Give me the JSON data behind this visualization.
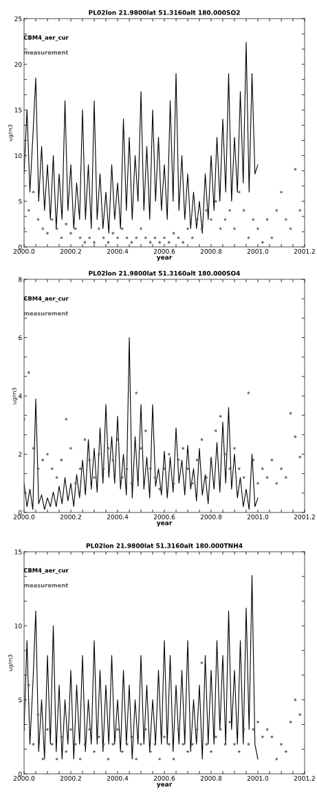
{
  "chart_data": [
    {
      "type": "line",
      "title": "PL02lon 21.9800lat 51.3160alt 180.000SO2",
      "xlabel": "year",
      "ylabel": "ug/m3",
      "legend": "top left",
      "xlim": [
        2000.0,
        2001.2
      ],
      "ylim": [
        0,
        25
      ],
      "xticks": [
        {
          "value": 2000.0,
          "label": "2000.0"
        },
        {
          "value": 2000.05,
          "label": null
        },
        {
          "value": 2000.1,
          "label": null
        },
        {
          "value": 2000.15,
          "label": null
        },
        {
          "value": 2000.2,
          "label": "2000.2"
        },
        {
          "value": 2000.25,
          "label": null
        },
        {
          "value": 2000.3,
          "label": null
        },
        {
          "value": 2000.35,
          "label": null
        },
        {
          "value": 2000.4,
          "label": "2000.4"
        },
        {
          "value": 2000.45,
          "label": null
        },
        {
          "value": 2000.5,
          "label": null
        },
        {
          "value": 2000.55,
          "label": null
        },
        {
          "value": 2000.6,
          "label": "2000.6"
        },
        {
          "value": 2000.65,
          "label": null
        },
        {
          "value": 2000.7,
          "label": null
        },
        {
          "value": 2000.75,
          "label": null
        },
        {
          "value": 2000.8,
          "label": "2000.8"
        },
        {
          "value": 2000.85,
          "label": null
        },
        {
          "value": 2000.9,
          "label": null
        },
        {
          "value": 2000.95,
          "label": null
        },
        {
          "value": 2001.0,
          "label": "2001.0"
        },
        {
          "value": 2001.05,
          "label": null
        },
        {
          "value": 2001.1,
          "label": null
        },
        {
          "value": 2001.15,
          "label": null
        },
        {
          "value": 2001.2,
          "label": "2001.2"
        }
      ],
      "yticks": [
        0,
        {
          "value": 1.667,
          "label": null
        },
        {
          "value": 3.333,
          "label": null
        },
        5,
        {
          "value": 6.667,
          "label": null
        },
        {
          "value": 8.333,
          "label": null
        },
        10,
        {
          "value": 11.667,
          "label": null
        },
        {
          "value": 13.333,
          "label": null
        },
        15,
        {
          "value": 16.667,
          "label": null
        },
        {
          "value": 18.333,
          "label": null
        },
        20,
        {
          "value": 21.667,
          "label": null
        },
        {
          "value": 23.333,
          "label": null
        },
        25
      ],
      "series": [
        {
          "name": "CBM4_aer_cur",
          "type": "line",
          "color": "#000000",
          "marker": "none",
          "line_style": "solid",
          "x": [
            2000,
            2000.0125,
            2000.025,
            2000.0375,
            2000.05,
            2000.0625,
            2000.075,
            2000.0875,
            2000.1,
            2000.1125,
            2000.125,
            2000.1375,
            2000.15,
            2000.1625,
            2000.175,
            2000.1875,
            2000.2,
            2000.2125,
            2000.225,
            2000.2375,
            2000.25,
            2000.2625,
            2000.275,
            2000.2875,
            2000.3,
            2000.3125,
            2000.325,
            2000.3375,
            2000.35,
            2000.3625,
            2000.375,
            2000.3875,
            2000.4,
            2000.4125,
            2000.425,
            2000.4375,
            2000.45,
            2000.4625,
            2000.475,
            2000.4875,
            2000.5,
            2000.5125,
            2000.525,
            2000.5375,
            2000.55,
            2000.5625,
            2000.575,
            2000.5875,
            2000.6,
            2000.6125,
            2000.625,
            2000.6375,
            2000.65,
            2000.6625,
            2000.675,
            2000.6875,
            2000.7,
            2000.7125,
            2000.725,
            2000.7375,
            2000.75,
            2000.7625,
            2000.775,
            2000.7875,
            2000.8,
            2000.8125,
            2000.825,
            2000.8375,
            2000.85,
            2000.8625,
            2000.875,
            2000.8875,
            2000.9,
            2000.9125,
            2000.925,
            2000.9375,
            2000.95,
            2000.9625,
            2000.975,
            2000.9875,
            2001
          ],
          "values": [
            8,
            15,
            6,
            12,
            18.5,
            5,
            11,
            4,
            9,
            3,
            10,
            2,
            8,
            3,
            16,
            4,
            9,
            2,
            7,
            3,
            15,
            3,
            9,
            2,
            16,
            3,
            8,
            2,
            6,
            1.5,
            9,
            3,
            7,
            2,
            14,
            4,
            12,
            3,
            10,
            5,
            17,
            4,
            11,
            3,
            15,
            5,
            12,
            4,
            9,
            3,
            16,
            5,
            19,
            4,
            10,
            3,
            8,
            2,
            6,
            2,
            5,
            1.5,
            8,
            3,
            10,
            4,
            12,
            5,
            14,
            6,
            19,
            5,
            12,
            6,
            17,
            7,
            22.4,
            6,
            19,
            8,
            9
          ]
        },
        {
          "name": "measurement",
          "type": "scatter",
          "color": "#555555",
          "marker": "star",
          "x": [
            2000,
            2000.02,
            2000.04,
            2000.06,
            2000.08,
            2000.1,
            2000.12,
            2000.14,
            2000.16,
            2000.18,
            2000.2,
            2000.22,
            2000.24,
            2000.26,
            2000.28,
            2000.3,
            2000.32,
            2000.34,
            2000.36,
            2000.38,
            2000.4,
            2000.42,
            2000.44,
            2000.46,
            2000.48,
            2000.5,
            2000.52,
            2000.54,
            2000.56,
            2000.58,
            2000.6,
            2000.62,
            2000.64,
            2000.66,
            2000.68,
            2000.7,
            2000.72,
            2000.74,
            2000.76,
            2000.78,
            2000.8,
            2000.82,
            2000.84,
            2000.86,
            2000.88,
            2000.9,
            2000.92,
            2000.94,
            2000.96,
            2000.98,
            2001,
            2001.02,
            2001.04,
            2001.06,
            2001.08,
            2001.1,
            2001.12,
            2001.14,
            2001.16,
            2001.18
          ],
          "values": [
            2,
            4,
            6,
            3,
            2,
            1.5,
            3,
            2,
            1,
            2.5,
            1.5,
            2,
            1,
            0.5,
            1,
            0.5,
            2,
            1,
            0.5,
            1.5,
            1,
            2,
            1,
            0.5,
            1,
            2,
            1,
            0.5,
            1,
            0.5,
            1,
            0.5,
            1.5,
            1,
            0.5,
            2,
            1,
            3,
            2,
            4,
            3,
            5,
            2,
            3,
            4,
            2,
            6,
            4,
            1,
            3,
            2,
            0.5,
            3,
            1,
            4,
            6,
            3,
            2,
            8.5,
            4
          ]
        }
      ]
    },
    {
      "type": "line",
      "title": "PL02lon 21.9800lat 51.3160alt 180.000SO4",
      "xlabel": "year",
      "ylabel": "ug/m3",
      "legend": "top left",
      "xlim": [
        2000.0,
        2001.2
      ],
      "ylim": [
        0,
        8
      ],
      "xticks": [
        {
          "value": 2000.0,
          "label": "2000.0"
        },
        {
          "value": 2000.05,
          "label": null
        },
        {
          "value": 2000.1,
          "label": null
        },
        {
          "value": 2000.15,
          "label": null
        },
        {
          "value": 2000.2,
          "label": "2000.2"
        },
        {
          "value": 2000.25,
          "label": null
        },
        {
          "value": 2000.3,
          "label": null
        },
        {
          "value": 2000.35,
          "label": null
        },
        {
          "value": 2000.4,
          "label": "2000.4"
        },
        {
          "value": 2000.45,
          "label": null
        },
        {
          "value": 2000.5,
          "label": null
        },
        {
          "value": 2000.55,
          "label": null
        },
        {
          "value": 2000.6,
          "label": "2000.6"
        },
        {
          "value": 2000.65,
          "label": null
        },
        {
          "value": 2000.7,
          "label": null
        },
        {
          "value": 2000.75,
          "label": null
        },
        {
          "value": 2000.8,
          "label": "2000.8"
        },
        {
          "value": 2000.85,
          "label": null
        },
        {
          "value": 2000.9,
          "label": null
        },
        {
          "value": 2000.95,
          "label": null
        },
        {
          "value": 2001.0,
          "label": "2001.0"
        },
        {
          "value": 2001.05,
          "label": null
        },
        {
          "value": 2001.1,
          "label": null
        },
        {
          "value": 2001.15,
          "label": null
        },
        {
          "value": 2001.2,
          "label": "2001.2"
        }
      ],
      "yticks": [
        0,
        {
          "value": 0.667,
          "label": null
        },
        {
          "value": 1.333,
          "label": null
        },
        2,
        {
          "value": 2.667,
          "label": null
        },
        {
          "value": 3.333,
          "label": null
        },
        4,
        {
          "value": 4.667,
          "label": null
        },
        {
          "value": 5.333,
          "label": null
        },
        6,
        {
          "value": 6.667,
          "label": null
        },
        {
          "value": 7.333,
          "label": null
        },
        8
      ],
      "series": [
        {
          "name": "CBM4_aer_cur",
          "type": "line",
          "color": "#000000",
          "marker": "none",
          "line_style": "solid",
          "x": [
            2000,
            2000.0125,
            2000.025,
            2000.0375,
            2000.05,
            2000.0625,
            2000.075,
            2000.0875,
            2000.1,
            2000.1125,
            2000.125,
            2000.1375,
            2000.15,
            2000.1625,
            2000.175,
            2000.1875,
            2000.2,
            2000.2125,
            2000.225,
            2000.2375,
            2000.25,
            2000.2625,
            2000.275,
            2000.2875,
            2000.3,
            2000.3125,
            2000.325,
            2000.3375,
            2000.35,
            2000.3625,
            2000.375,
            2000.3875,
            2000.4,
            2000.4125,
            2000.425,
            2000.4375,
            2000.45,
            2000.4625,
            2000.475,
            2000.4875,
            2000.5,
            2000.5125,
            2000.525,
            2000.5375,
            2000.55,
            2000.5625,
            2000.575,
            2000.5875,
            2000.6,
            2000.6125,
            2000.625,
            2000.6375,
            2000.65,
            2000.6625,
            2000.675,
            2000.6875,
            2000.7,
            2000.7125,
            2000.725,
            2000.7375,
            2000.75,
            2000.7625,
            2000.775,
            2000.7875,
            2000.8,
            2000.8125,
            2000.825,
            2000.8375,
            2000.85,
            2000.8625,
            2000.875,
            2000.8875,
            2000.9,
            2000.9125,
            2000.925,
            2000.9375,
            2000.95,
            2000.9625,
            2000.975,
            2000.9875,
            2001
          ],
          "values": [
            1,
            0.2,
            0.8,
            0.1,
            3.9,
            0.3,
            0.6,
            0.1,
            0.5,
            0.2,
            0.7,
            0.2,
            0.9,
            0.3,
            1.2,
            0.4,
            1.0,
            0.2,
            1.3,
            0.5,
            1.8,
            0.6,
            2.5,
            0.8,
            2.2,
            0.7,
            2.9,
            1.0,
            3.7,
            1.2,
            2.6,
            1.0,
            3.3,
            0.8,
            2.0,
            0.6,
            6.0,
            0.5,
            2.6,
            0.9,
            3.7,
            0.8,
            1.9,
            0.5,
            3.7,
            0.9,
            1.5,
            0.6,
            2.1,
            0.5,
            1.9,
            0.7,
            2.9,
            1.0,
            1.8,
            0.6,
            2.3,
            0.8,
            1.5,
            0.4,
            2.2,
            0.6,
            1.3,
            0.3,
            1.9,
            0.8,
            2.4,
            0.7,
            3.1,
            1.0,
            3.6,
            0.8,
            2.0,
            0.5,
            1.2,
            0.2,
            0.8,
            0.1,
            2.0,
            0.2,
            0.5
          ]
        },
        {
          "name": "measurement",
          "type": "scatter",
          "color": "#555555",
          "marker": "star",
          "x": [
            2000,
            2000.02,
            2000.04,
            2000.06,
            2000.08,
            2000.1,
            2000.12,
            2000.14,
            2000.16,
            2000.18,
            2000.2,
            2000.22,
            2000.24,
            2000.26,
            2000.28,
            2000.3,
            2000.32,
            2000.34,
            2000.36,
            2000.38,
            2000.4,
            2000.42,
            2000.44,
            2000.46,
            2000.48,
            2000.5,
            2000.52,
            2000.54,
            2000.56,
            2000.58,
            2000.6,
            2000.62,
            2000.64,
            2000.66,
            2000.68,
            2000.7,
            2000.72,
            2000.74,
            2000.76,
            2000.78,
            2000.8,
            2000.82,
            2000.84,
            2000.86,
            2000.88,
            2000.9,
            2000.92,
            2000.94,
            2000.96,
            2000.98,
            2001,
            2001.02,
            2001.04,
            2001.06,
            2001.08,
            2001.1,
            2001.12,
            2001.14,
            2001.16,
            2001.18
          ],
          "values": [
            3.2,
            4.8,
            2.2,
            1.5,
            1.8,
            2.0,
            1.5,
            1.2,
            1.8,
            3.2,
            2.2,
            1.0,
            1.5,
            2.5,
            1.8,
            1.2,
            2.0,
            1.5,
            2.2,
            1.8,
            2.5,
            1.2,
            1.5,
            1.0,
            4.1,
            2.2,
            2.8,
            1.5,
            1.2,
            0.8,
            1.5,
            2.0,
            1.0,
            1.8,
            2.2,
            1.5,
            1.0,
            1.8,
            2.5,
            1.2,
            1.8,
            2.8,
            3.3,
            2.0,
            1.5,
            2.2,
            1.5,
            1.2,
            4.1,
            1.8,
            1.0,
            1.5,
            1.2,
            1.8,
            1.0,
            1.5,
            1.2,
            3.4,
            2.6,
            1.9
          ]
        }
      ]
    },
    {
      "type": "line",
      "title": "PL02lon 21.9800lat 51.3160alt 180.000TNH4",
      "xlabel": "year",
      "ylabel": "ug/m3",
      "legend": "top left",
      "xlim": [
        2000.0,
        2001.2
      ],
      "ylim": [
        0,
        15
      ],
      "xticks": [
        {
          "value": 2000.0,
          "label": "2000.0"
        },
        {
          "value": 2000.05,
          "label": null
        },
        {
          "value": 2000.1,
          "label": null
        },
        {
          "value": 2000.15,
          "label": null
        },
        {
          "value": 2000.2,
          "label": "2000.2"
        },
        {
          "value": 2000.25,
          "label": null
        },
        {
          "value": 2000.3,
          "label": null
        },
        {
          "value": 2000.35,
          "label": null
        },
        {
          "value": 2000.4,
          "label": "2000.4"
        },
        {
          "value": 2000.45,
          "label": null
        },
        {
          "value": 2000.5,
          "label": null
        },
        {
          "value": 2000.55,
          "label": null
        },
        {
          "value": 2000.6,
          "label": "2000.6"
        },
        {
          "value": 2000.65,
          "label": null
        },
        {
          "value": 2000.7,
          "label": null
        },
        {
          "value": 2000.75,
          "label": null
        },
        {
          "value": 2000.8,
          "label": "2000.8"
        },
        {
          "value": 2000.85,
          "label": null
        },
        {
          "value": 2000.9,
          "label": null
        },
        {
          "value": 2000.95,
          "label": null
        },
        {
          "value": 2001.0,
          "label": "2001.0"
        },
        {
          "value": 2001.05,
          "label": null
        },
        {
          "value": 2001.1,
          "label": null
        },
        {
          "value": 2001.15,
          "label": null
        },
        {
          "value": 2001.2,
          "label": "2001.2"
        }
      ],
      "yticks": [
        0,
        {
          "value": 1.667,
          "label": null
        },
        {
          "value": 3.333,
          "label": null
        },
        5,
        {
          "value": 6.667,
          "label": null
        },
        {
          "value": 8.333,
          "label": null
        },
        10,
        {
          "value": 11.667,
          "label": null
        },
        {
          "value": 13.333,
          "label": null
        },
        15
      ],
      "series": [
        {
          "name": "CBM4_aer_cur",
          "type": "line",
          "color": "#000000",
          "marker": "none",
          "line_style": "solid",
          "x": [
            2000,
            2000.0125,
            2000.025,
            2000.0375,
            2000.05,
            2000.0625,
            2000.075,
            2000.0875,
            2000.1,
            2000.1125,
            2000.125,
            2000.1375,
            2000.15,
            2000.1625,
            2000.175,
            2000.1875,
            2000.2,
            2000.2125,
            2000.225,
            2000.2375,
            2000.25,
            2000.2625,
            2000.275,
            2000.2875,
            2000.3,
            2000.3125,
            2000.325,
            2000.3375,
            2000.35,
            2000.3625,
            2000.375,
            2000.3875,
            2000.4,
            2000.4125,
            2000.425,
            2000.4375,
            2000.45,
            2000.4625,
            2000.475,
            2000.4875,
            2000.5,
            2000.5125,
            2000.525,
            2000.5375,
            2000.55,
            2000.5625,
            2000.575,
            2000.5875,
            2000.6,
            2000.6125,
            2000.625,
            2000.6375,
            2000.65,
            2000.6625,
            2000.675,
            2000.6875,
            2000.7,
            2000.7125,
            2000.725,
            2000.7375,
            2000.75,
            2000.7625,
            2000.775,
            2000.7875,
            2000.8,
            2000.8125,
            2000.825,
            2000.8375,
            2000.85,
            2000.8625,
            2000.875,
            2000.8875,
            2000.9,
            2000.9125,
            2000.925,
            2000.9375,
            2000.95,
            2000.9625,
            2000.975,
            2000.9875,
            2001
          ],
          "values": [
            3,
            9,
            2,
            6,
            11,
            1.5,
            5,
            1,
            8,
            2,
            10,
            1.5,
            6,
            1,
            5,
            2,
            7,
            1,
            6,
            2,
            8,
            1.5,
            5,
            2,
            9,
            2,
            7,
            1.5,
            6,
            2,
            8,
            2,
            5,
            1.5,
            7,
            2,
            6,
            1,
            5,
            2,
            8,
            2,
            6,
            1.5,
            5,
            2,
            7,
            2,
            9,
            2,
            8,
            1.5,
            6,
            2,
            7,
            2,
            9,
            1.5,
            5,
            2,
            6,
            1,
            8,
            2,
            7,
            2,
            9,
            3,
            8,
            2,
            11,
            3,
            7,
            2,
            9,
            2,
            11.2,
            3,
            13.4,
            2,
            1
          ]
        },
        {
          "name": "measurement",
          "type": "scatter",
          "color": "#555555",
          "marker": "star",
          "x": [
            2000,
            2000.02,
            2000.04,
            2000.06,
            2000.08,
            2000.1,
            2000.12,
            2000.14,
            2000.16,
            2000.18,
            2000.2,
            2000.22,
            2000.24,
            2000.26,
            2000.28,
            2000.3,
            2000.32,
            2000.34,
            2000.36,
            2000.38,
            2000.4,
            2000.42,
            2000.44,
            2000.46,
            2000.48,
            2000.5,
            2000.52,
            2000.54,
            2000.56,
            2000.58,
            2000.6,
            2000.62,
            2000.64,
            2000.66,
            2000.68,
            2000.7,
            2000.72,
            2000.74,
            2000.76,
            2000.78,
            2000.8,
            2000.82,
            2000.84,
            2000.86,
            2000.88,
            2000.9,
            2000.92,
            2000.94,
            2000.96,
            2000.98,
            2001,
            2001.02,
            2001.04,
            2001.06,
            2001.08,
            2001.1,
            2001.12,
            2001.14,
            2001.16,
            2001.18
          ],
          "values": [
            3,
            6,
            2,
            4,
            1,
            3,
            2,
            1,
            2.5,
            1.5,
            3,
            2,
            1,
            2,
            3,
            1.5,
            2.5,
            2,
            1,
            2,
            3,
            1.5,
            2,
            2.5,
            1,
            2,
            3,
            1.5,
            2,
            1,
            2.5,
            2,
            1,
            3,
            2,
            1.5,
            2,
            3,
            7.5,
            2,
            1.5,
            2.5,
            3,
            2,
            3.5,
            2,
            1.5,
            3,
            2,
            3,
            3.5,
            2.5,
            3,
            2.5,
            1,
            2,
            1.5,
            3.5,
            5,
            4
          ]
        }
      ]
    }
  ]
}
